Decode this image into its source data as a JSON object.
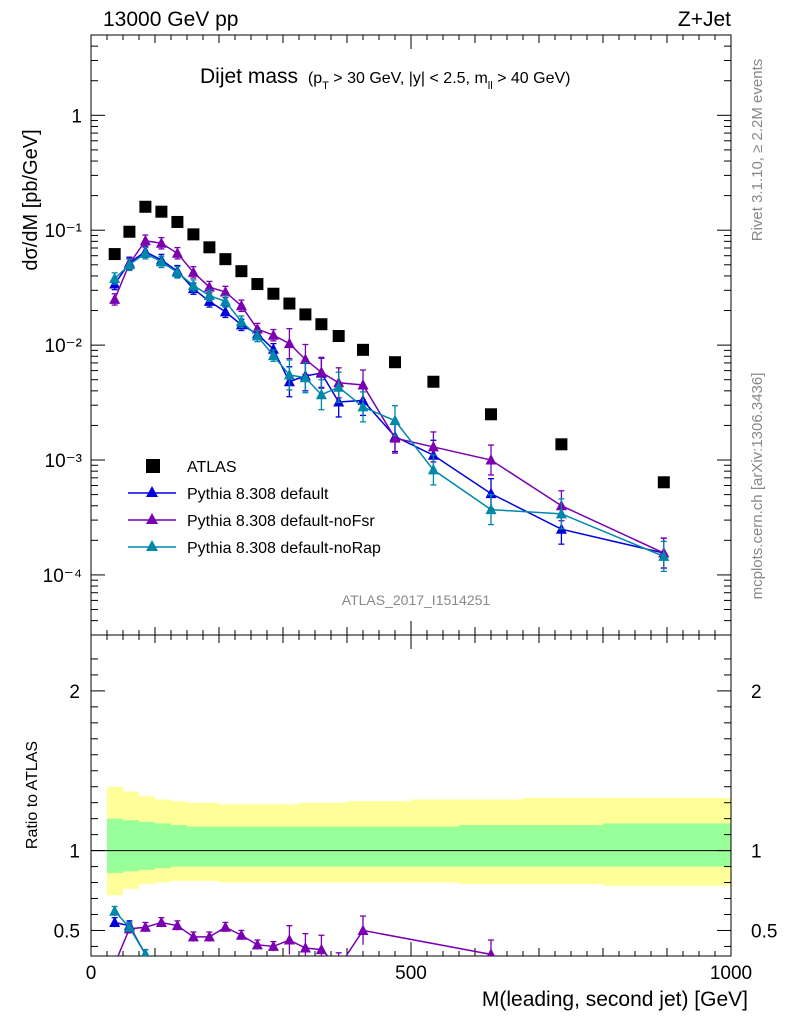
{
  "header": {
    "left": "13000 GeV pp",
    "right": "Z+Jet"
  },
  "side_labels": {
    "rivet": "Rivet 3.1.10, ≥ 2.2M events",
    "mcplots": "mcplots.cern.ch [arXiv:1306.3436]"
  },
  "watermark": "ATLAS_2017_I1514251",
  "colors": {
    "atlas": "#000000",
    "default": "#0000dd",
    "noFsr": "#7a00b0",
    "noRap": "#0088aa",
    "band_outer": "#ffff99",
    "band_inner": "#99ff99"
  },
  "chart_data": [
    {
      "type": "scatter",
      "title": "Dijet mass",
      "title_cuts": {
        "pre": "(p",
        "pt_sub": "T",
        "mid": " > 30 GeV, |y| < 2.5, m",
        "m_sub": "ll",
        "post": " > 40 GeV)"
      },
      "ylabel": "dσ/dM [pb/GeV]",
      "yscale": "log",
      "ylim": [
        3e-05,
        5
      ],
      "xlim": [
        0,
        1000
      ],
      "y_tick_labels": [
        "10⁻⁴",
        "10⁻³",
        "10⁻²",
        "10⁻¹",
        "1"
      ],
      "legend": [
        "ATLAS",
        "Pythia 8.308 default",
        "Pythia 8.308 default-noFsr",
        "Pythia 8.308 default-noRap"
      ],
      "legend_position": "bottom-left",
      "series": [
        {
          "name": "ATLAS",
          "marker": "square",
          "x": [
            37,
            60,
            85,
            110,
            135,
            160,
            185,
            210,
            235,
            260,
            285,
            310,
            335,
            360,
            387,
            425,
            475,
            535,
            625,
            735,
            895
          ],
          "y": [
            0.062,
            0.097,
            0.16,
            0.145,
            0.118,
            0.092,
            0.071,
            0.056,
            0.044,
            0.034,
            0.028,
            0.023,
            0.0185,
            0.0152,
            0.012,
            0.0091,
            0.0071,
            0.0048,
            0.0025,
            0.00137,
            0.00064
          ]
        },
        {
          "name": "Pythia 8.308 default",
          "marker": "triangle",
          "x": [
            37,
            60,
            85,
            110,
            135,
            160,
            185,
            210,
            235,
            260,
            285,
            310,
            335,
            360,
            387,
            425,
            475,
            535,
            625,
            735,
            895
          ],
          "y": [
            0.034,
            0.052,
            0.065,
            0.055,
            0.044,
            0.031,
            0.024,
            0.0195,
            0.015,
            0.0125,
            0.0092,
            0.0048,
            0.0054,
            0.0057,
            0.0032,
            0.0033,
            0.0016,
            0.0011,
            0.00051,
            0.00025,
            0.000155
          ]
        },
        {
          "name": "Pythia 8.308 default-noFsr",
          "marker": "triangle",
          "x": [
            37,
            60,
            85,
            110,
            135,
            160,
            185,
            210,
            235,
            260,
            285,
            310,
            335,
            360,
            387,
            425,
            475,
            535,
            625,
            735,
            895
          ],
          "y": [
            0.025,
            0.051,
            0.081,
            0.077,
            0.063,
            0.043,
            0.032,
            0.029,
            0.022,
            0.0138,
            0.0122,
            0.0103,
            0.0075,
            0.0058,
            0.0047,
            0.0045,
            0.00155,
            0.0013,
            0.001,
            0.0004,
            0.000155
          ]
        },
        {
          "name": "Pythia 8.308 default-noRap",
          "marker": "triangle",
          "x": [
            37,
            60,
            85,
            110,
            135,
            160,
            185,
            210,
            235,
            260,
            285,
            310,
            335,
            360,
            387,
            425,
            475,
            535,
            625,
            735,
            895
          ],
          "y": [
            0.038,
            0.05,
            0.063,
            0.053,
            0.043,
            0.033,
            0.027,
            0.024,
            0.016,
            0.012,
            0.0081,
            0.0055,
            0.0052,
            0.0037,
            0.0043,
            0.0029,
            0.0022,
            0.00082,
            0.00037,
            0.00034,
            0.000145
          ]
        }
      ]
    },
    {
      "type": "scatter",
      "ylabel": "Ratio to ATLAS",
      "xlabel": "M(leading, second jet) [GeV]",
      "xlim": [
        0,
        1000
      ],
      "ylim": [
        0.34,
        2.35
      ],
      "x_ticks": [
        0,
        500,
        1000
      ],
      "y_ticks": [
        0.5,
        1,
        2
      ],
      "reference_line": 1,
      "uncertainty_band": {
        "edges": [
          25,
          50,
          75,
          100,
          125,
          150,
          175,
          200,
          225,
          250,
          275,
          300,
          325,
          350,
          375,
          400,
          450,
          500,
          575,
          675,
          800,
          1000
        ],
        "outer_low": [
          0.72,
          0.76,
          0.79,
          0.8,
          0.81,
          0.81,
          0.81,
          0.8,
          0.8,
          0.8,
          0.8,
          0.8,
          0.8,
          0.8,
          0.8,
          0.8,
          0.8,
          0.8,
          0.79,
          0.79,
          0.78
        ],
        "outer_high": [
          1.4,
          1.37,
          1.34,
          1.32,
          1.31,
          1.3,
          1.3,
          1.29,
          1.29,
          1.29,
          1.29,
          1.29,
          1.3,
          1.3,
          1.3,
          1.31,
          1.31,
          1.32,
          1.32,
          1.33,
          1.33
        ],
        "inner_low": [
          0.86,
          0.87,
          0.88,
          0.89,
          0.9,
          0.9,
          0.9,
          0.9,
          0.9,
          0.9,
          0.9,
          0.9,
          0.9,
          0.9,
          0.9,
          0.9,
          0.9,
          0.9,
          0.9,
          0.9,
          0.9
        ],
        "inner_high": [
          1.2,
          1.19,
          1.18,
          1.17,
          1.16,
          1.15,
          1.15,
          1.15,
          1.15,
          1.15,
          1.15,
          1.15,
          1.15,
          1.15,
          1.15,
          1.15,
          1.15,
          1.15,
          1.16,
          1.16,
          1.17
        ]
      },
      "series": [
        {
          "name": "Pythia 8.308 default",
          "x": [
            37,
            60,
            85
          ],
          "y": [
            0.55,
            0.53,
            0.35
          ]
        },
        {
          "name": "Pythia 8.308 default-noFsr",
          "x": [
            37,
            60,
            85,
            110,
            135,
            160,
            185,
            210,
            235,
            260,
            285,
            310,
            335,
            360,
            387,
            425,
            625
          ],
          "y": [
            0.29,
            0.51,
            0.52,
            0.55,
            0.53,
            0.46,
            0.46,
            0.52,
            0.47,
            0.41,
            0.4,
            0.44,
            0.39,
            0.38,
            0.27,
            0.5,
            0.35
          ]
        },
        {
          "name": "Pythia 8.308 default-noRap",
          "x": [
            37,
            60,
            85
          ],
          "y": [
            0.62,
            0.52,
            0.35
          ]
        }
      ]
    }
  ]
}
